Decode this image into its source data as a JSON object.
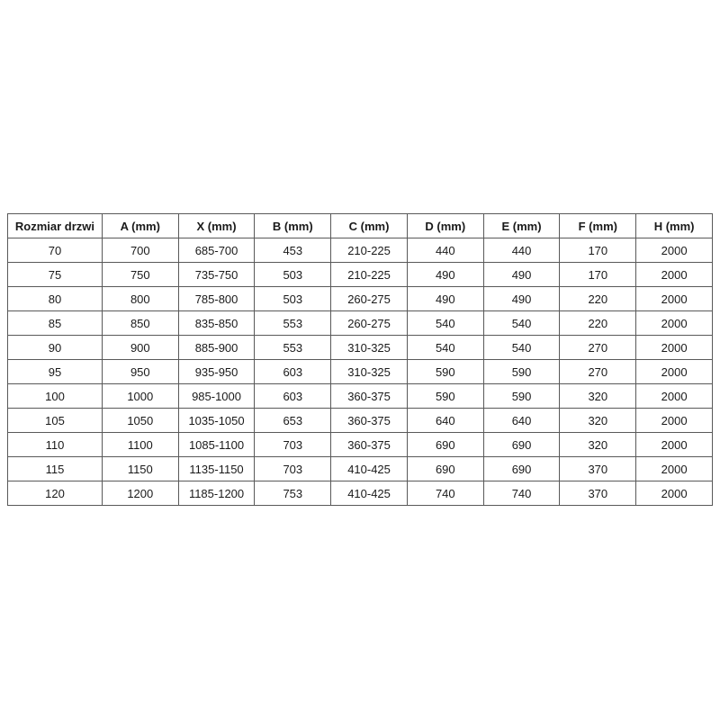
{
  "table": {
    "headers": [
      "Rozmiar drzwi",
      "A (mm)",
      "X (mm)",
      "B (mm)",
      "C (mm)",
      "D (mm)",
      "E (mm)",
      "F (mm)",
      "H (mm)"
    ],
    "rows": [
      [
        "70",
        "700",
        "685-700",
        "453",
        "210-225",
        "440",
        "440",
        "170",
        "2000"
      ],
      [
        "75",
        "750",
        "735-750",
        "503",
        "210-225",
        "490",
        "490",
        "170",
        "2000"
      ],
      [
        "80",
        "800",
        "785-800",
        "503",
        "260-275",
        "490",
        "490",
        "220",
        "2000"
      ],
      [
        "85",
        "850",
        "835-850",
        "553",
        "260-275",
        "540",
        "540",
        "220",
        "2000"
      ],
      [
        "90",
        "900",
        "885-900",
        "553",
        "310-325",
        "540",
        "540",
        "270",
        "2000"
      ],
      [
        "95",
        "950",
        "935-950",
        "603",
        "310-325",
        "590",
        "590",
        "270",
        "2000"
      ],
      [
        "100",
        "1000",
        "985-1000",
        "603",
        "360-375",
        "590",
        "590",
        "320",
        "2000"
      ],
      [
        "105",
        "1050",
        "1035-1050",
        "653",
        "360-375",
        "640",
        "640",
        "320",
        "2000"
      ],
      [
        "110",
        "1100",
        "1085-1100",
        "703",
        "360-375",
        "690",
        "690",
        "320",
        "2000"
      ],
      [
        "115",
        "1150",
        "1135-1150",
        "703",
        "410-425",
        "690",
        "690",
        "370",
        "2000"
      ],
      [
        "120",
        "1200",
        "1185-1200",
        "753",
        "410-425",
        "740",
        "740",
        "370",
        "2000"
      ]
    ],
    "colors": {
      "border": "#595959",
      "text": "#1a1a1a",
      "background": "#ffffff"
    }
  }
}
